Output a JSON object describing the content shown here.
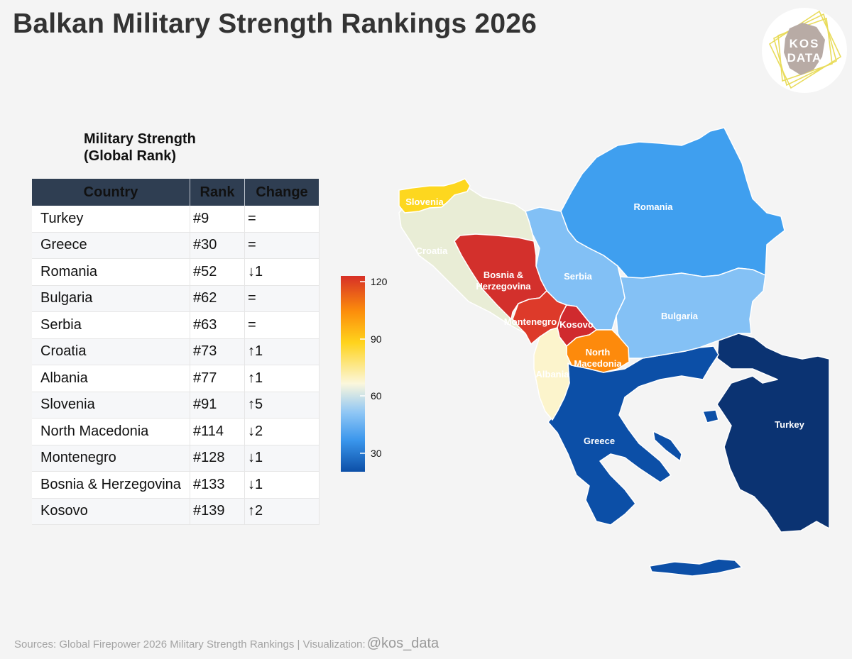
{
  "title": "Balkan Military Strength Rankings 2026",
  "logo": {
    "text_top": "KOS",
    "text_bottom": "DATA"
  },
  "table": {
    "title_line1": "Military Strength",
    "title_line2": "(Global Rank)",
    "headers": [
      "Country",
      "Rank",
      "Change"
    ],
    "rows": [
      {
        "country": "Turkey",
        "rank": "#9",
        "change": "="
      },
      {
        "country": "Greece",
        "rank": "#30",
        "change": "="
      },
      {
        "country": "Romania",
        "rank": "#52",
        "change": "↓1"
      },
      {
        "country": "Bulgaria",
        "rank": "#62",
        "change": "="
      },
      {
        "country": "Serbia",
        "rank": "#63",
        "change": "="
      },
      {
        "country": "Croatia",
        "rank": "#73",
        "change": "↑1"
      },
      {
        "country": "Albania",
        "rank": "#77",
        "change": "↑1"
      },
      {
        "country": "Slovenia",
        "rank": "#91",
        "change": "↑5"
      },
      {
        "country": "North Macedonia",
        "rank": "#114",
        "change": "↓2"
      },
      {
        "country": "Montenegro",
        "rank": "#128",
        "change": "↓1"
      },
      {
        "country": "Bosnia & Herzegovina",
        "rank": "#133",
        "change": "↓1"
      },
      {
        "country": "Kosovo",
        "rank": "#139",
        "change": "↑2"
      }
    ]
  },
  "legend": {
    "ticks": [
      "120",
      "90",
      "60",
      "30"
    ],
    "colors": {
      "high": "#d73027",
      "upper": "#fc8d0b",
      "mid_upper": "#ffd31c",
      "mid": "#fbf7dc",
      "mid_lower": "#8ec6f5",
      "lower": "#3a96ec",
      "low": "#0c4fa7"
    }
  },
  "map": {
    "labels": {
      "slovenia": "Slovenia",
      "croatia": "Croatia",
      "bosnia_1": "Bosnia &",
      "bosnia_2": "Herzegovina",
      "serbia": "Serbia",
      "romania": "Romania",
      "bulgaria": "Bulgaria",
      "montenegro": "Montenegro",
      "kosovo": "Kosovo",
      "north_macedonia_1": "North",
      "north_macedonia_2": "Macedonia",
      "albania": "Albania",
      "greece": "Greece",
      "turkey": "Turkey"
    },
    "colors": {
      "turkey": "#0b3372",
      "greece": "#0c4fa7",
      "romania": "#3f9fef",
      "bulgaria": "#84c1f5",
      "serbia": "#82c0f5",
      "croatia": "#e9edd6",
      "albania": "#fcf4cc",
      "slovenia": "#fdd71f",
      "north_macedonia": "#fd8a0c",
      "montenegro": "#dd3a2a",
      "bosnia": "#d3302c",
      "kosovo": "#d02a2e"
    }
  },
  "source": {
    "text": "Sources: Global Firepower 2026 Military Strength Rankings | Visualization:",
    "handle": "@kos_data"
  }
}
